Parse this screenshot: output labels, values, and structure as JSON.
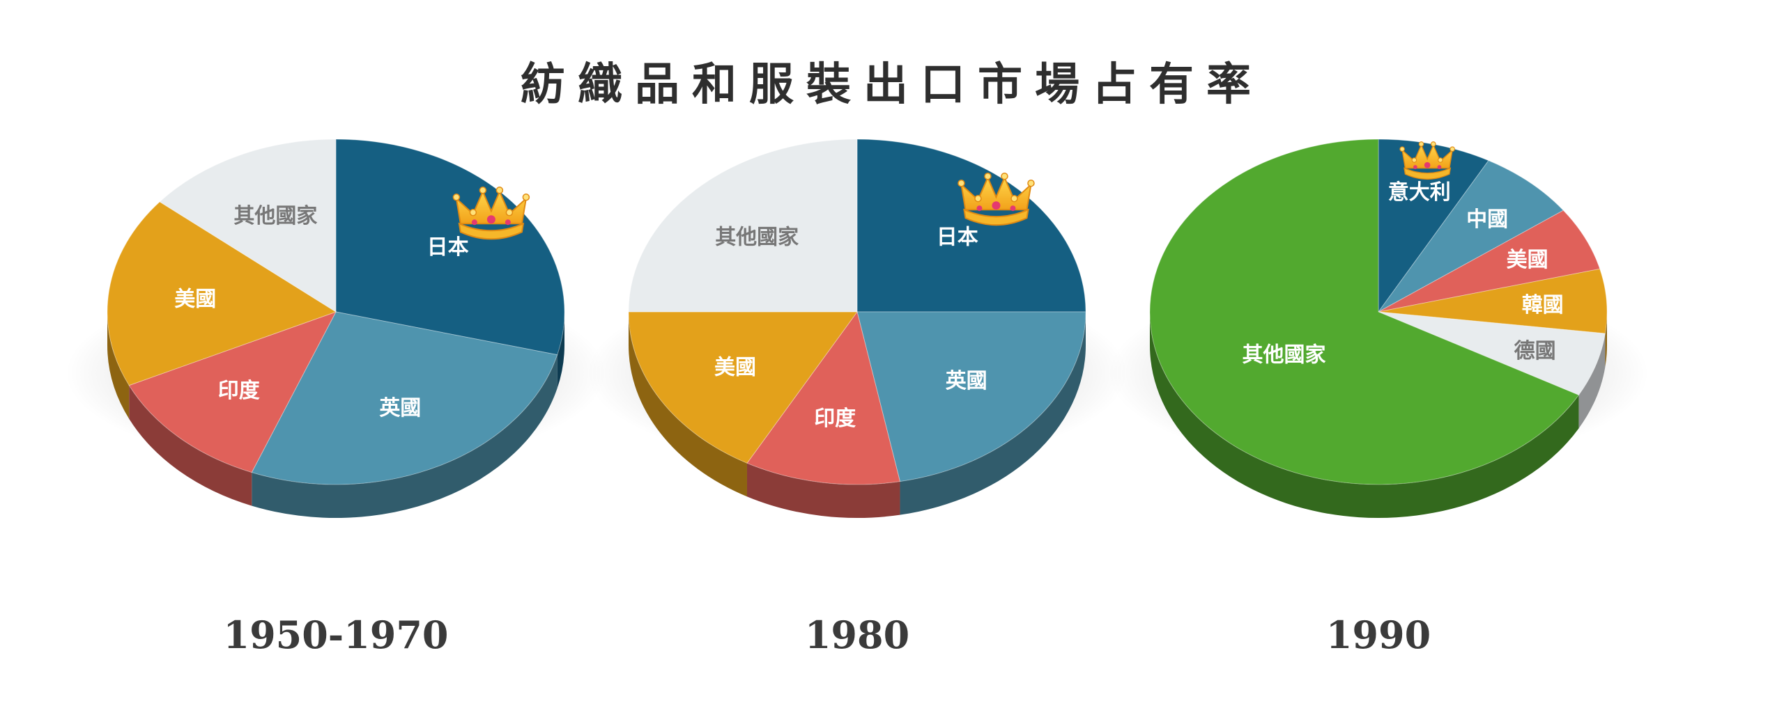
{
  "chart_data": [
    {
      "type": "pie",
      "title": "紡織品和服裝出口市場占有率",
      "year_label": "1950-1970",
      "slices": [
        {
          "label": "日本",
          "value": 29,
          "color": "#155f82",
          "text_color": "#ffffff",
          "crown": true
        },
        {
          "label": "英國",
          "value": 27,
          "color": "#4f94ae",
          "text_color": "#ffffff"
        },
        {
          "label": "印度",
          "value": 12,
          "color": "#e0615a",
          "text_color": "#ffffff"
        },
        {
          "label": "美國",
          "value": 18,
          "color": "#e3a11b",
          "text_color": "#ffffff"
        },
        {
          "label": "其他國家",
          "value": 14,
          "color": "#e8ecee",
          "text_color": "#777777"
        }
      ]
    },
    {
      "type": "pie",
      "year_label": "1980",
      "slices": [
        {
          "label": "日本",
          "value": 25,
          "color": "#155f82",
          "text_color": "#ffffff",
          "crown": true
        },
        {
          "label": "英國",
          "value": 22,
          "color": "#4f94ae",
          "text_color": "#ffffff"
        },
        {
          "label": "印度",
          "value": 11,
          "color": "#e0615a",
          "text_color": "#ffffff"
        },
        {
          "label": "美國",
          "value": 17,
          "color": "#e3a11b",
          "text_color": "#ffffff"
        },
        {
          "label": "其他國家",
          "value": 25,
          "color": "#e8ecee",
          "text_color": "#777777"
        }
      ]
    },
    {
      "type": "pie",
      "year_label": "1990",
      "slices": [
        {
          "label": "意大利",
          "value": 8,
          "color": "#155f82",
          "text_color": "#ffffff",
          "crown": true
        },
        {
          "label": "中國",
          "value": 7,
          "color": "#4f94ae",
          "text_color": "#ffffff"
        },
        {
          "label": "美國",
          "value": 6,
          "color": "#e0615a",
          "text_color": "#ffffff"
        },
        {
          "label": "韓國",
          "value": 6,
          "color": "#e3a11b",
          "text_color": "#ffffff"
        },
        {
          "label": "德國",
          "value": 6,
          "color": "#e8ecee",
          "text_color": "#777777"
        },
        {
          "label": "其他國家",
          "value": 67,
          "color": "#52a92f",
          "text_color": "#ffffff"
        }
      ]
    }
  ]
}
